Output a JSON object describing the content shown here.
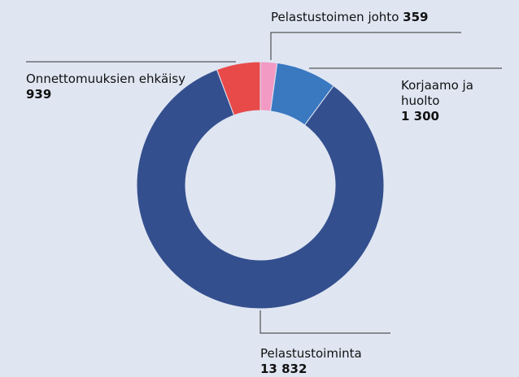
{
  "chart_data": {
    "type": "donut",
    "categories": [
      "Pelastustoimen johto",
      "Korjaamo ja huolto",
      "Pelastustoiminta",
      "Onnettomuuksien ehkäisy"
    ],
    "values": [
      359,
      1300,
      13832,
      939
    ],
    "value_labels": [
      "359",
      "1 300",
      "13 832",
      "939"
    ],
    "colors": [
      "#f29ac4",
      "#3a78c0",
      "#344f8e",
      "#e84a4a"
    ]
  }
}
